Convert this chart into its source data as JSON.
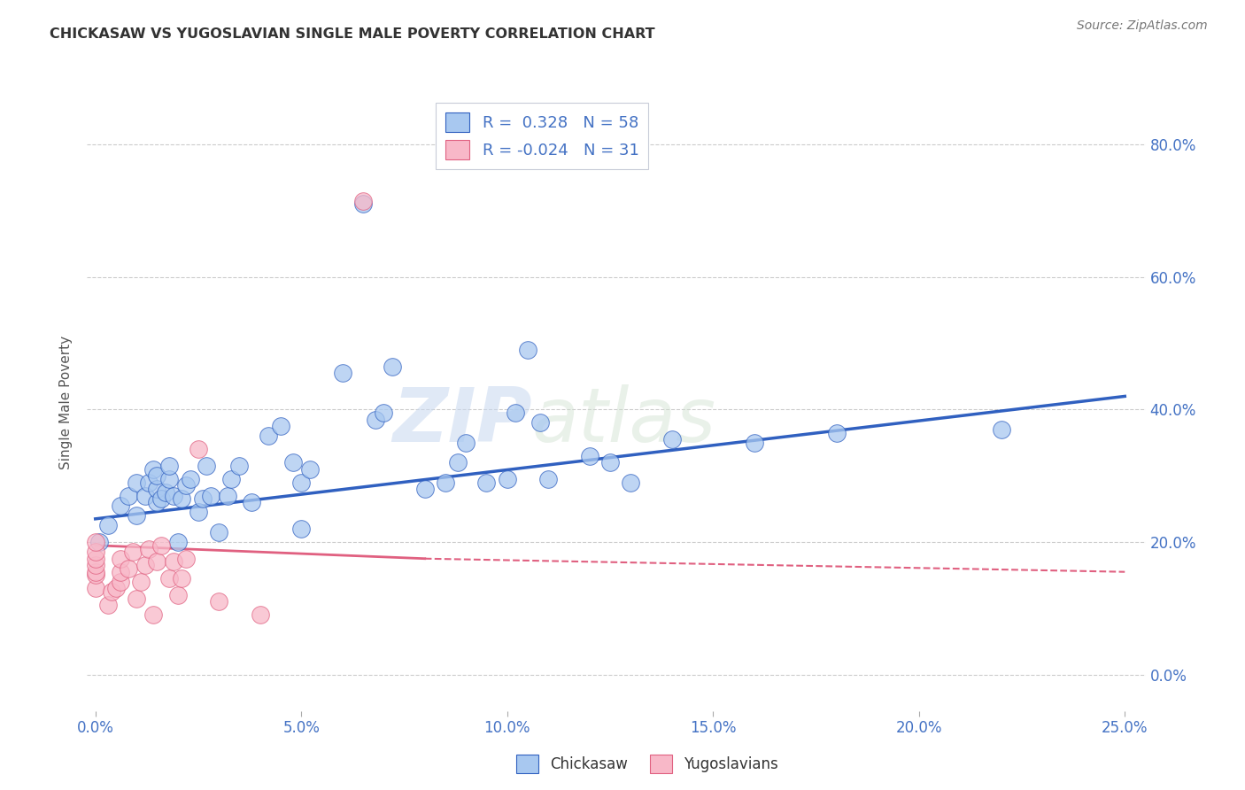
{
  "title": "CHICKASAW VS YUGOSLAVIAN SINGLE MALE POVERTY CORRELATION CHART",
  "source": "Source: ZipAtlas.com",
  "xlabel_ticks": [
    "0.0%",
    "5.0%",
    "10.0%",
    "15.0%",
    "20.0%",
    "25.0%"
  ],
  "xlabel_vals": [
    0.0,
    0.05,
    0.1,
    0.15,
    0.2,
    0.25
  ],
  "ylabel_ticks": [
    "0.0%",
    "20.0%",
    "40.0%",
    "60.0%",
    "80.0%"
  ],
  "ylabel_vals": [
    0.0,
    0.2,
    0.4,
    0.6,
    0.8
  ],
  "ylabel_label": "Single Male Poverty",
  "xlim": [
    -0.002,
    0.255
  ],
  "ylim": [
    -0.055,
    0.875
  ],
  "chickasaw_R": 0.328,
  "chickasaw_N": 58,
  "yugoslavian_R": -0.024,
  "yugoslavian_N": 31,
  "chickasaw_color": "#A8C8F0",
  "yugoslavian_color": "#F8B8C8",
  "trendline_chickasaw_color": "#3060C0",
  "trendline_yugoslavian_color": "#E06080",
  "watermark_zip": "ZIP",
  "watermark_atlas": "atlas",
  "legend_box_color": "#E8F0FF",
  "legend_border_color": "#C0C8E0",
  "chickasaw_x": [
    0.001,
    0.003,
    0.006,
    0.008,
    0.01,
    0.01,
    0.012,
    0.013,
    0.014,
    0.015,
    0.015,
    0.015,
    0.016,
    0.017,
    0.018,
    0.018,
    0.019,
    0.02,
    0.021,
    0.022,
    0.023,
    0.025,
    0.026,
    0.027,
    0.028,
    0.03,
    0.032,
    0.033,
    0.035,
    0.038,
    0.042,
    0.045,
    0.048,
    0.05,
    0.05,
    0.052,
    0.06,
    0.065,
    0.068,
    0.07,
    0.072,
    0.08,
    0.085,
    0.088,
    0.09,
    0.095,
    0.1,
    0.102,
    0.105,
    0.108,
    0.11,
    0.12,
    0.125,
    0.13,
    0.14,
    0.16,
    0.18,
    0.22
  ],
  "chickasaw_y": [
    0.2,
    0.225,
    0.255,
    0.27,
    0.24,
    0.29,
    0.27,
    0.29,
    0.31,
    0.26,
    0.28,
    0.3,
    0.265,
    0.275,
    0.295,
    0.315,
    0.27,
    0.2,
    0.265,
    0.285,
    0.295,
    0.245,
    0.265,
    0.315,
    0.27,
    0.215,
    0.27,
    0.295,
    0.315,
    0.26,
    0.36,
    0.375,
    0.32,
    0.22,
    0.29,
    0.31,
    0.455,
    0.71,
    0.385,
    0.395,
    0.465,
    0.28,
    0.29,
    0.32,
    0.35,
    0.29,
    0.295,
    0.395,
    0.49,
    0.38,
    0.295,
    0.33,
    0.32,
    0.29,
    0.355,
    0.35,
    0.365,
    0.37
  ],
  "yugoslavian_x": [
    0.0,
    0.0,
    0.0,
    0.0,
    0.0,
    0.0,
    0.0,
    0.003,
    0.004,
    0.005,
    0.006,
    0.006,
    0.006,
    0.008,
    0.009,
    0.01,
    0.011,
    0.012,
    0.013,
    0.014,
    0.015,
    0.016,
    0.018,
    0.019,
    0.02,
    0.021,
    0.022,
    0.025,
    0.03,
    0.04,
    0.065
  ],
  "yugoslavian_y": [
    0.13,
    0.15,
    0.155,
    0.165,
    0.175,
    0.185,
    0.2,
    0.105,
    0.125,
    0.13,
    0.14,
    0.155,
    0.175,
    0.16,
    0.185,
    0.115,
    0.14,
    0.165,
    0.19,
    0.09,
    0.17,
    0.195,
    0.145,
    0.17,
    0.12,
    0.145,
    0.175,
    0.34,
    0.11,
    0.09,
    0.715
  ],
  "trendline_x_start": 0.0,
  "trendline_x_end_chickasaw": 0.25,
  "trendline_x_end_yugoslavian_solid": 0.08,
  "trendline_x_end_yugoslavian_dashed": 0.25,
  "chickasaw_trend_y0": 0.235,
  "chickasaw_trend_y1": 0.42,
  "yugoslavian_trend_y0": 0.195,
  "yugoslavian_trend_y1_solid": 0.175,
  "yugoslavian_trend_y1_dashed": 0.155
}
